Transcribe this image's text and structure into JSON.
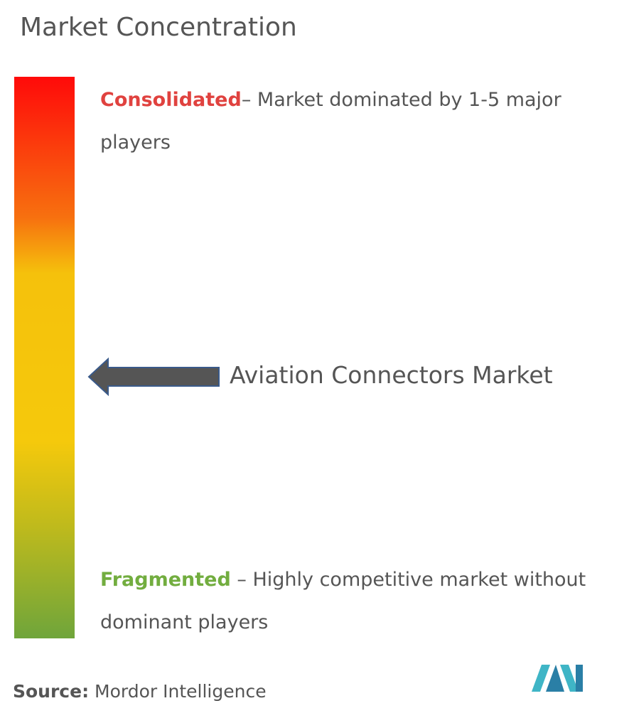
{
  "title": "Market Concentration",
  "consolidated": {
    "label": "Consolidated",
    "text": "– Market dominated by 1-5 major players"
  },
  "market": "Aviation Connectors Market",
  "fragmented": {
    "label": "Fragmented",
    "text": " – Highly competitive market without dominant players"
  },
  "source": {
    "label": "Source:",
    "text": " Mordor Intelligence"
  }
}
